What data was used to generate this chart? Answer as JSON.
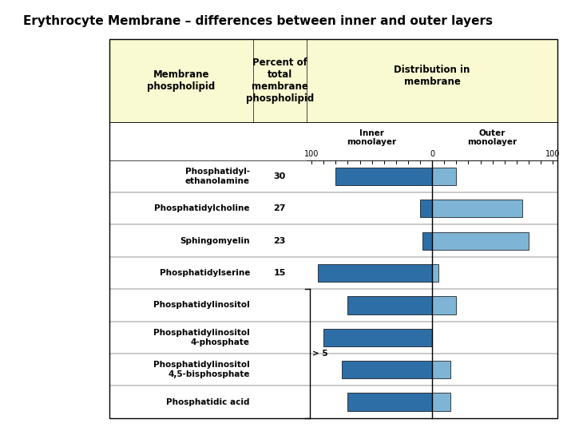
{
  "title": "Erythrocyte Membrane – differences between inner and outer layers",
  "rows": [
    {
      "label": "Phosphatidyl-\nethanolamine",
      "percent": "30",
      "inner": 80,
      "outer": 20
    },
    {
      "label": "Phosphatidylcholine",
      "percent": "27",
      "inner": 10,
      "outer": 75
    },
    {
      "label": "Sphingomyelin",
      "percent": "23",
      "inner": 8,
      "outer": 80
    },
    {
      "label": "Phosphatidylserine",
      "percent": "15",
      "inner": 95,
      "outer": 5
    },
    {
      "label": "Phosphatidylinositol",
      "percent": "",
      "inner": 70,
      "outer": 20
    },
    {
      "label": "Phosphatidylinositol\n4-phosphate",
      "percent": "",
      "inner": 90,
      "outer": 0
    },
    {
      "label": "Phosphatidylinositol\n4,5-bisphosphate",
      "percent": "",
      "inner": 75,
      "outer": 15
    },
    {
      "label": "Phosphatidic acid",
      "percent": "",
      "inner": 70,
      "outer": 15
    }
  ],
  "bracket_rows": [
    4,
    5,
    6,
    7
  ],
  "bracket_label": "> 5",
  "inner_color": "#2E6EA6",
  "outer_color": "#7EB5D6",
  "header_bg": "#FAFAD2",
  "table_bg": "#FFFFFF",
  "col1_header": "Membrane\nphospholipid",
  "col2_header": "Percent of\ntotal\nmembrane\nphospholipid",
  "col3_header": "Distribution in\nmembrane",
  "inner_label": "Inner\nmonolayer",
  "outer_label": "Outer\nmonolayer"
}
